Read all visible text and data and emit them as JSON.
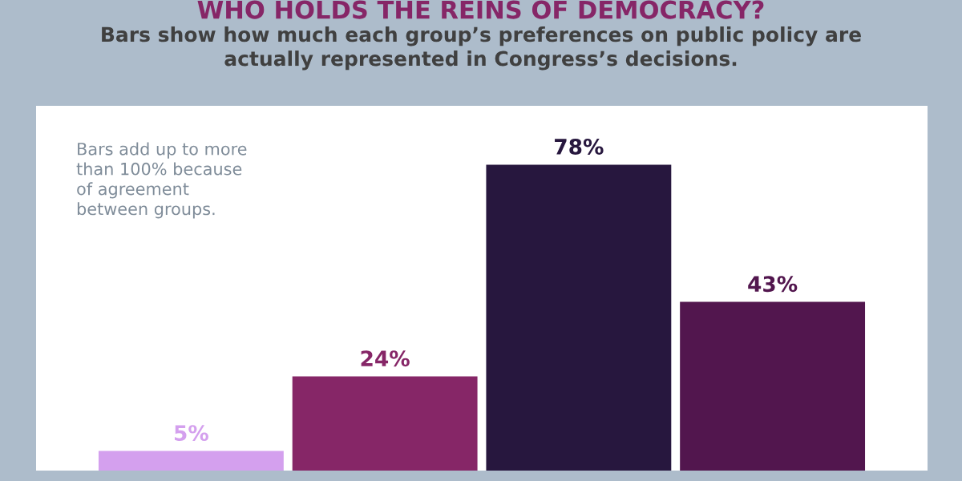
{
  "chart_data": {
    "type": "bar",
    "title": "WHO HOLDS THE REINS OF DEMOCRACY?",
    "subtitle": "Bars show how much each group’s preferences on public policy are\nactually represented in Congress’s decisions.",
    "annotations": [
      "Bars add up to more\nthan 100% because\nof agreement\nbetween groups."
    ],
    "categories": [
      null,
      null,
      null,
      null
    ],
    "values": [
      5,
      24,
      78,
      43
    ],
    "colors": [
      "#d4a0ee",
      "#862667",
      "#27173e",
      "#52164e"
    ],
    "value_labels": [
      "5%",
      "24%",
      "78%",
      "43%"
    ],
    "ylim": [
      0,
      93
    ],
    "tick_labels": false,
    "grid": false,
    "legend": false
  }
}
